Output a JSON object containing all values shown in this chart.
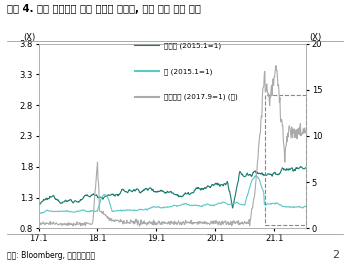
{
  "title": "그림 4. 낮은 실질금리 수혜 입어온 나스닥, 가상 화폐 가격 하락",
  "xlabel_left": "(X)",
  "xlabel_right": "(X)",
  "source": "자료: Bloomberg, 하나금융투자",
  "page": "2",
  "legend": [
    {
      "label": "나스닥 (2015.1=1)",
      "color": "#1a7a6e"
    },
    {
      "label": "금 (2015.1=1)",
      "color": "#5cc8c8"
    },
    {
      "label": "비트코인 (2017.9=1) (우)",
      "color": "#aaaaaa"
    }
  ],
  "ylim_left": [
    0.8,
    3.8
  ],
  "ylim_right": [
    0,
    20
  ],
  "yticks_left": [
    0.8,
    1.3,
    1.8,
    2.3,
    2.8,
    3.3,
    3.8
  ],
  "yticks_right": [
    0,
    5,
    10,
    15,
    20
  ],
  "xticks": [
    "17.1",
    "18.1",
    "19.1",
    "20.1",
    "21.1"
  ],
  "bg_color": "#ffffff"
}
